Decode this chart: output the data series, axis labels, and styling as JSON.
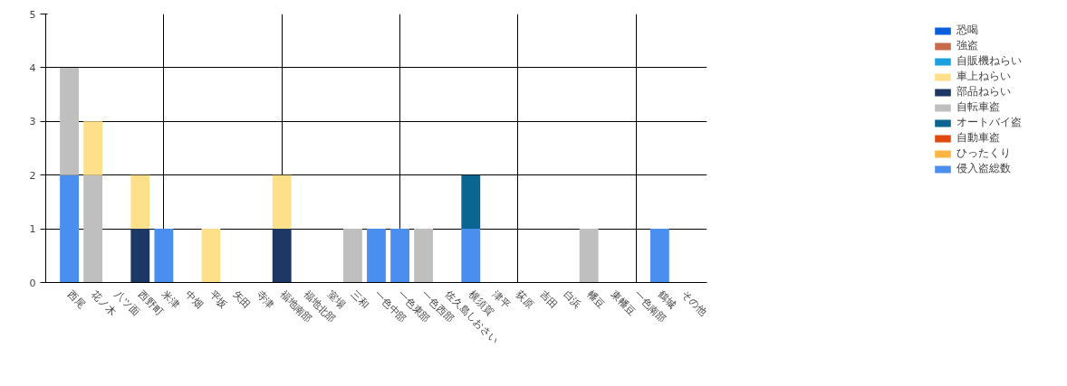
{
  "chart_data": {
    "type": "bar",
    "stacked": true,
    "categories": [
      "西尾",
      "花ノ木",
      "八ツ面",
      "西野町",
      "米津",
      "中畑",
      "平坂",
      "矢田",
      "寺津",
      "福地南部",
      "福地北部",
      "室場",
      "三和",
      "一色中部",
      "一色東部",
      "一色西部",
      "佐久島しおさい",
      "横須賀",
      "津平",
      "荻原",
      "吉田",
      "白浜",
      "幡豆",
      "東幡豆",
      "一色南部",
      "鶴城",
      "その他"
    ],
    "series": [
      {
        "name": "侵入盗総数",
        "color": "#4a8ff0",
        "values": [
          2,
          0,
          0,
          0,
          1,
          0,
          0,
          0,
          0,
          0,
          0,
          0,
          0,
          1,
          1,
          0,
          0,
          1,
          0,
          0,
          0,
          0,
          0,
          0,
          0,
          1,
          0
        ]
      },
      {
        "name": "ひったくり",
        "color": "#fbb540",
        "values": [
          0,
          0,
          0,
          0,
          0,
          0,
          0,
          0,
          0,
          0,
          0,
          0,
          0,
          0,
          0,
          0,
          0,
          0,
          0,
          0,
          0,
          0,
          0,
          0,
          0,
          0,
          0
        ]
      },
      {
        "name": "自動車盗",
        "color": "#e04a10",
        "values": [
          0,
          0,
          0,
          0,
          0,
          0,
          0,
          0,
          0,
          0,
          0,
          0,
          0,
          0,
          0,
          0,
          0,
          0,
          0,
          0,
          0,
          0,
          0,
          0,
          0,
          0,
          0
        ]
      },
      {
        "name": "オートバイ盗",
        "color": "#0a6690",
        "values": [
          0,
          0,
          0,
          0,
          0,
          0,
          0,
          0,
          0,
          0,
          0,
          0,
          0,
          0,
          0,
          0,
          0,
          1,
          0,
          0,
          0,
          0,
          0,
          0,
          0,
          0,
          0
        ]
      },
      {
        "name": "自転車盗",
        "color": "#bfbfbf",
        "values": [
          2,
          2,
          0,
          0,
          0,
          0,
          0,
          0,
          0,
          0,
          0,
          0,
          1,
          0,
          0,
          1,
          0,
          0,
          0,
          0,
          0,
          0,
          1,
          0,
          0,
          0,
          0
        ]
      },
      {
        "name": "部品ねらい",
        "color": "#1d3864",
        "values": [
          0,
          0,
          0,
          1,
          0,
          0,
          0,
          0,
          0,
          1,
          0,
          0,
          0,
          0,
          0,
          0,
          0,
          0,
          0,
          0,
          0,
          0,
          0,
          0,
          0,
          0,
          0
        ]
      },
      {
        "name": "車上ねらい",
        "color": "#ffe08a",
        "values": [
          0,
          1,
          0,
          1,
          0,
          0,
          1,
          0,
          0,
          1,
          0,
          0,
          0,
          0,
          0,
          0,
          0,
          0,
          0,
          0,
          0,
          0,
          0,
          0,
          0,
          0,
          0
        ]
      },
      {
        "name": "自販機ねらい",
        "color": "#1ba1e2",
        "values": [
          0,
          0,
          0,
          0,
          0,
          0,
          0,
          0,
          0,
          0,
          0,
          0,
          0,
          0,
          0,
          0,
          0,
          0,
          0,
          0,
          0,
          0,
          0,
          0,
          0,
          0,
          0
        ]
      },
      {
        "name": "強盗",
        "color": "#c8694a",
        "values": [
          0,
          0,
          0,
          0,
          0,
          0,
          0,
          0,
          0,
          0,
          0,
          0,
          0,
          0,
          0,
          0,
          0,
          0,
          0,
          0,
          0,
          0,
          0,
          0,
          0,
          0,
          0
        ]
      },
      {
        "name": "恐喝",
        "color": "#0a5fdc",
        "values": [
          0,
          0,
          0,
          0,
          0,
          0,
          0,
          0,
          0,
          0,
          0,
          0,
          0,
          0,
          0,
          0,
          0,
          0,
          0,
          0,
          0,
          0,
          0,
          0,
          0,
          0,
          0
        ]
      }
    ],
    "ylim": [
      0,
      5
    ],
    "yticks": [
      0,
      1,
      2,
      3,
      4,
      5
    ],
    "grid": true,
    "legend": "top right"
  }
}
